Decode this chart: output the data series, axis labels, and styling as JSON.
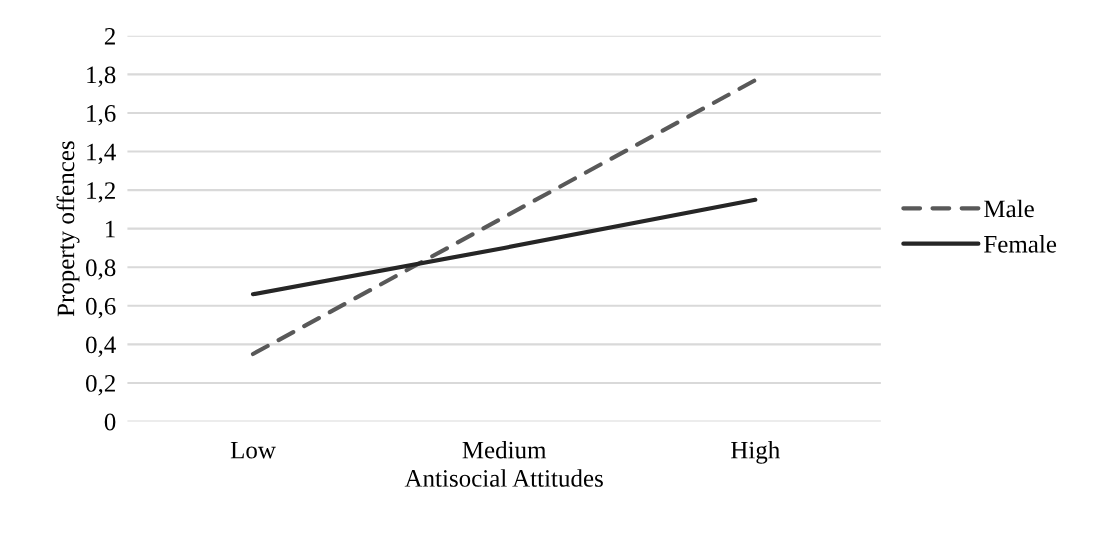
{
  "chart_data": {
    "type": "line",
    "xlabel": "Antisocial Attitudes",
    "ylabel": "Property offences",
    "categories": [
      "Low",
      "Medium",
      "High"
    ],
    "series": [
      {
        "name": "Male",
        "color": "#595959",
        "values": [
          0.35,
          1.06,
          1.77
        ],
        "line_style": "dashed"
      },
      {
        "name": "Female",
        "color": "#262626",
        "values": [
          0.66,
          0.9,
          1.15
        ],
        "line_style": "solid"
      }
    ],
    "ylim": [
      0,
      2
    ],
    "yticks": [
      0,
      {
        "value": 0.2,
        "label": "0,2"
      },
      {
        "value": 0.4,
        "label": "0,4"
      },
      {
        "value": 0.6,
        "label": "0,6"
      },
      {
        "value": 0.8,
        "label": "0,8"
      },
      1,
      {
        "value": 1.2,
        "label": "1,2"
      },
      {
        "value": 1.4,
        "label": "1,4"
      },
      {
        "value": 1.6,
        "label": "1,6"
      },
      {
        "value": 1.8,
        "label": "1,8"
      },
      2
    ],
    "grid": "y",
    "legend": "right",
    "marker": "none"
  }
}
